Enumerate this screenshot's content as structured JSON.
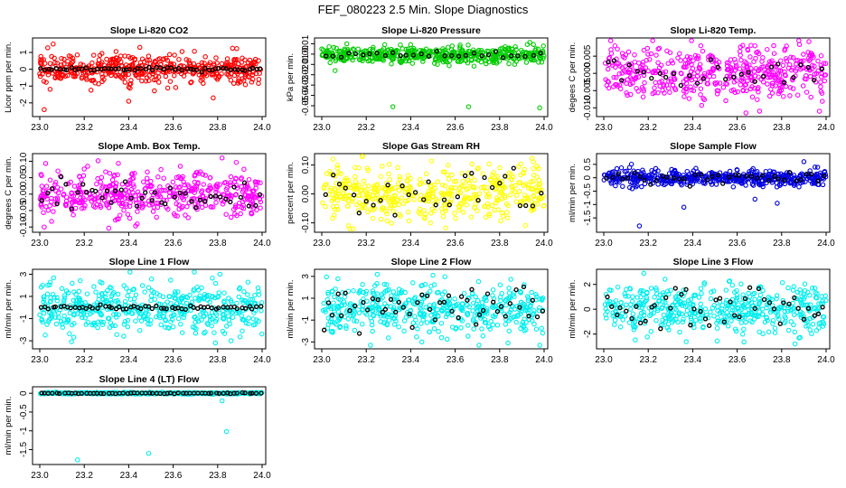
{
  "chart_data": {
    "title": "FEF_080223  2.5 Min. Slope Diagnostics",
    "type": "scatter",
    "panels": [
      {
        "id": "co2",
        "title": "Slope Li-820 CO2",
        "ylabel": "Licor ppm per min.",
        "color": "#ff0000",
        "xlim": [
          23.0,
          24.0
        ],
        "xticks": [
          "23.0",
          "23.2",
          "23.4",
          "23.6",
          "23.8",
          "24.0"
        ],
        "ylim": [
          -2.6,
          1.7
        ],
        "yticks": [
          {
            "v": -2,
            "label": "-2"
          },
          {
            "v": -1,
            "label": "-1"
          },
          {
            "v": 0,
            "label": "0"
          },
          {
            "v": 1,
            "label": "1"
          }
        ],
        "series": {
          "sd": 0.45,
          "center": 0.0,
          "outliers": [
            [
              23.06,
              1.5
            ],
            [
              23.02,
              -2.4
            ],
            [
              23.45,
              1.3
            ],
            [
              23.4,
              -1.9
            ],
            [
              23.78,
              -1.7
            ]
          ]
        },
        "overlay": {
          "sd": 0.05,
          "n": 60
        }
      },
      {
        "id": "pressure",
        "title": "Slope Li-820 Pressure",
        "ylabel": "kPa per min.",
        "color": "#00cc00",
        "xlim": [
          23.0,
          24.0
        ],
        "xticks": [
          "23.0",
          "23.2",
          "23.4",
          "23.6",
          "23.8",
          "24.0"
        ],
        "ylim": [
          -0.057,
          0.013
        ],
        "yticks": [
          {
            "v": -0.05,
            "label": "-0.05"
          },
          {
            "v": -0.04,
            "label": "-0.04"
          },
          {
            "v": -0.03,
            "label": "-0.03"
          },
          {
            "v": -0.02,
            "label": "-0.02"
          },
          {
            "v": -0.01,
            "label": "-0.01"
          },
          {
            "v": 0.0,
            "label": "0.00"
          },
          {
            "v": 0.01,
            "label": "0.01"
          }
        ],
        "series": {
          "sd": 0.004,
          "center": -0.001,
          "outliers": [
            [
              23.32,
              -0.051
            ],
            [
              23.66,
              -0.051
            ],
            [
              23.98,
              -0.052
            ],
            [
              23.06,
              -0.016
            ],
            [
              23.0,
              0.005
            ]
          ]
        },
        "overlay": {
          "sd": 0.0015,
          "n": 30
        }
      },
      {
        "id": "temp",
        "title": "Slope Li-820 Temp.",
        "ylabel": "degees C per min.",
        "color": "#ff00ff",
        "xlim": [
          23.0,
          24.0
        ],
        "xticks": [
          "23.0",
          "23.2",
          "23.4",
          "23.6",
          "23.8",
          "24.0"
        ],
        "ylim": [
          -0.0115,
          0.0095
        ],
        "yticks": [
          {
            "v": -0.01,
            "label": "-0.010"
          },
          {
            "v": -0.005,
            "label": "-0.005"
          },
          {
            "v": 0.0,
            "label": "0.000"
          },
          {
            "v": 0.005,
            "label": "0.005"
          }
        ],
        "series": {
          "sd": 0.0035,
          "center": 0.0,
          "outliers": [
            [
              23.05,
              0.008
            ],
            [
              23.68,
              0.008
            ],
            [
              23.97,
              -0.011
            ]
          ]
        },
        "overlay": {
          "sd": 0.003,
          "n": 30
        }
      },
      {
        "id": "ambbox",
        "title": "Slope Amb. Box Temp.",
        "ylabel": "degrees C per min.",
        "color": "#ff00ff",
        "xlim": [
          23.0,
          24.0
        ],
        "xticks": [
          "23.0",
          "23.2",
          "23.4",
          "23.6",
          "23.8",
          "24.0"
        ],
        "ylim": [
          -0.105,
          0.115
        ],
        "yticks": [
          {
            "v": -0.1,
            "label": "-0.10"
          },
          {
            "v": -0.05,
            "label": "-0.05"
          },
          {
            "v": 0.0,
            "label": "0.00"
          },
          {
            "v": 0.05,
            "label": "0.05"
          },
          {
            "v": 0.1,
            "label": "0.10"
          }
        ],
        "series": {
          "sd": 0.035,
          "center": 0.0,
          "outliers": [
            [
              23.82,
              0.11
            ],
            [
              23.02,
              -0.1
            ]
          ]
        },
        "overlay": {
          "sd": 0.02,
          "n": 45
        }
      },
      {
        "id": "rh",
        "title": "Slope Gas Stream RH",
        "ylabel": "percent per min.",
        "color": "#ffff00",
        "xlim": [
          23.0,
          24.0
        ],
        "xticks": [
          "23.0",
          "23.2",
          "23.4",
          "23.6",
          "23.8",
          "24.0"
        ],
        "ylim": [
          -0.12,
          0.13
        ],
        "yticks": [
          {
            "v": -0.1,
            "label": "-0.10"
          },
          {
            "v": 0.0,
            "label": "0.00"
          },
          {
            "v": 0.1,
            "label": "0.10"
          }
        ],
        "series": {
          "sd": 0.045,
          "center": 0.0,
          "outliers": [
            [
              23.05,
              0.12
            ],
            [
              23.12,
              -0.11
            ]
          ]
        },
        "overlay": {
          "sd": 0.04,
          "n": 32
        }
      },
      {
        "id": "sampleflow",
        "title": "Slope Sample Flow",
        "ylabel": "ml/min per min.",
        "color": "#0000dd",
        "xlim": [
          23.0,
          24.0
        ],
        "xticks": [
          "23.0",
          "23.2",
          "23.4",
          "23.6",
          "23.8",
          "24.0"
        ],
        "ylim": [
          -1.9,
          0.8
        ],
        "yticks": [
          {
            "v": -1.5,
            "label": "-1.5"
          },
          {
            "v": -1.0,
            "label": "-1"
          },
          {
            "v": -0.5,
            "label": "-0.5"
          },
          {
            "v": 0.0,
            "label": "0"
          },
          {
            "v": 0.5,
            "label": "0.5"
          }
        ],
        "series": {
          "sd": 0.14,
          "center": 0.0,
          "outliers": [
            [
              23.16,
              -1.8
            ],
            [
              23.36,
              -1.1
            ],
            [
              23.68,
              -0.8
            ],
            [
              23.78,
              -0.95
            ],
            [
              23.9,
              0.6
            ],
            [
              23.95,
              0.4
            ]
          ]
        },
        "overlay": {
          "sd": 0.15,
          "n": 40
        }
      },
      {
        "id": "line1",
        "title": "Slope Line 1 Flow",
        "ylabel": "ml/min per min.",
        "color": "#00eeee",
        "xlim": [
          23.0,
          24.0
        ],
        "xticks": [
          "23.0",
          "23.2",
          "23.4",
          "23.6",
          "23.8",
          "24.0"
        ],
        "ylim": [
          -3.4,
          3.2
        ],
        "yticks": [
          {
            "v": -3,
            "label": "-3"
          },
          {
            "v": -1,
            "label": "-1"
          },
          {
            "v": 1,
            "label": "1"
          },
          {
            "v": 3,
            "label": "3"
          }
        ],
        "series": {
          "sd": 1.1,
          "center": 0.0,
          "outliers": [
            [
              23.79,
              -3.2
            ],
            [
              23.86,
              -3.0
            ],
            [
              23.81,
              3.0
            ]
          ]
        },
        "overlay": {
          "sd": 0.1,
          "n": 60
        }
      },
      {
        "id": "line2",
        "title": "Slope Line 2 Flow",
        "ylabel": "ml/min per min.",
        "color": "#00eeee",
        "xlim": [
          23.0,
          24.0
        ],
        "xticks": [
          "23.0",
          "23.2",
          "23.4",
          "23.6",
          "23.8",
          "24.0"
        ],
        "ylim": [
          -3.3,
          3.4
        ],
        "yticks": [
          {
            "v": -3,
            "label": "-3"
          },
          {
            "v": -1,
            "label": "-1"
          },
          {
            "v": 1,
            "label": "1"
          },
          {
            "v": 3,
            "label": "3"
          }
        ],
        "series": {
          "sd": 1.1,
          "center": 0.0,
          "outliers": [
            [
              23.5,
              3.1
            ],
            [
              23.45,
              -3.0
            ]
          ]
        },
        "overlay": {
          "sd": 0.9,
          "n": 50
        }
      },
      {
        "id": "line3",
        "title": "Slope Line 3 Flow",
        "ylabel": "ml/min per min.",
        "color": "#00eeee",
        "xlim": [
          23.0,
          24.0
        ],
        "xticks": [
          "23.0",
          "23.2",
          "23.4",
          "23.6",
          "23.8",
          "24.0"
        ],
        "ylim": [
          -2.9,
          3.0
        ],
        "yticks": [
          {
            "v": -2,
            "label": "-2"
          },
          {
            "v": 0,
            "label": "0"
          },
          {
            "v": 2,
            "label": "2"
          }
        ],
        "series": {
          "sd": 0.95,
          "center": 0.0,
          "outliers": [
            [
              23.18,
              2.9
            ],
            [
              23.86,
              -2.8
            ]
          ]
        },
        "overlay": {
          "sd": 0.75,
          "n": 45
        }
      },
      {
        "id": "line4",
        "title": "Slope Line 4 (LT) Flow",
        "ylabel": "ml/min per min.",
        "color": "#00eeee",
        "xlim": [
          23.0,
          24.0
        ],
        "xticks": [
          "23.0",
          "23.2",
          "23.4",
          "23.6",
          "23.8",
          "24.0"
        ],
        "ylim": [
          -1.8,
          0.1
        ],
        "yticks": [
          {
            "v": -1.5,
            "label": "-1.5"
          },
          {
            "v": -1.0,
            "label": "-1"
          },
          {
            "v": -0.5,
            "label": "-0.5"
          },
          {
            "v": 0.0,
            "label": "0"
          }
        ],
        "series": {
          "sd": 0.01,
          "center": 0.0,
          "outliers": [
            [
              23.17,
              -1.77
            ],
            [
              23.49,
              -1.6
            ],
            [
              23.84,
              -1.02
            ],
            [
              23.82,
              -0.2
            ]
          ]
        },
        "overlay": {
          "sd": 0.005,
          "n": 60
        }
      }
    ]
  }
}
